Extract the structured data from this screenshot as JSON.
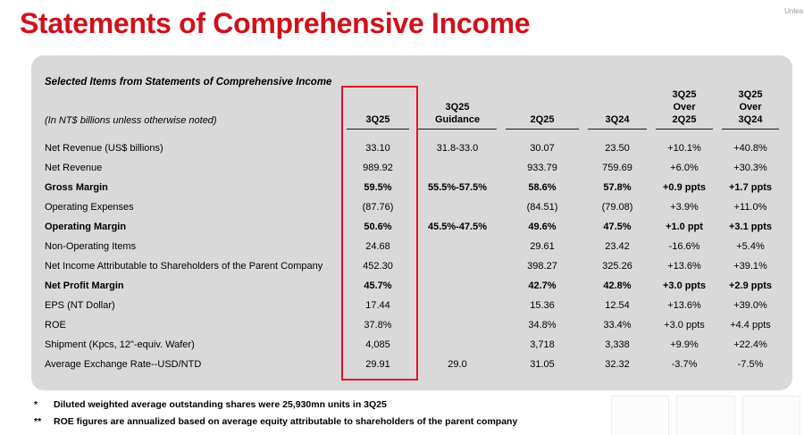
{
  "page": {
    "title": "Statements of Comprehensive Income",
    "corner_text": "Unlea"
  },
  "panel": {
    "caption": "Selected Items from Statements of Comprehensive Income",
    "unit_note": "(In NT$ billions unless otherwise noted)"
  },
  "table": {
    "columns": [
      "3Q25",
      "3Q25 Guidance",
      "2Q25",
      "3Q24",
      "3Q25 Over 2Q25",
      "3Q25 Over 3Q24"
    ],
    "columns_lines": [
      [
        "3Q25"
      ],
      [
        "3Q25",
        "Guidance"
      ],
      [
        "2Q25"
      ],
      [
        "3Q24"
      ],
      [
        "3Q25",
        "Over",
        "2Q25"
      ],
      [
        "3Q25",
        "Over",
        "3Q24"
      ]
    ],
    "highlight_column": "3Q25",
    "highlight_color": "#e8112d",
    "rows": [
      {
        "label": "Net Revenue (US$ billions)",
        "bold": false,
        "values": [
          "33.10",
          "31.8-33.0",
          "30.07",
          "23.50",
          "+10.1%",
          "+40.8%"
        ]
      },
      {
        "label": "Net Revenue",
        "bold": false,
        "values": [
          "989.92",
          "",
          "933.79",
          "759.69",
          "+6.0%",
          "+30.3%"
        ]
      },
      {
        "label": "Gross Margin",
        "bold": true,
        "values": [
          "59.5%",
          "55.5%-57.5%",
          "58.6%",
          "57.8%",
          "+0.9 ppts",
          "+1.7 ppts"
        ]
      },
      {
        "label": "Operating Expenses",
        "bold": false,
        "values": [
          "(87.76)",
          "",
          "(84.51)",
          "(79.08)",
          "+3.9%",
          "+11.0%"
        ]
      },
      {
        "label": "Operating Margin",
        "bold": true,
        "values": [
          "50.6%",
          "45.5%-47.5%",
          "49.6%",
          "47.5%",
          "+1.0 ppt",
          "+3.1 ppts"
        ]
      },
      {
        "label": "Non-Operating Items",
        "bold": false,
        "values": [
          "24.68",
          "",
          "29.61",
          "23.42",
          "-16.6%",
          "+5.4%"
        ]
      },
      {
        "label": "Net Income Attributable to Shareholders of the Parent Company",
        "bold": false,
        "values": [
          "452.30",
          "",
          "398.27",
          "325.26",
          "+13.6%",
          "+39.1%"
        ]
      },
      {
        "label": "Net Profit Margin",
        "bold": true,
        "values": [
          "45.7%",
          "",
          "42.7%",
          "42.8%",
          "+3.0 ppts",
          "+2.9 ppts"
        ]
      },
      {
        "label": "EPS (NT Dollar)",
        "bold": false,
        "values": [
          "17.44",
          "",
          "15.36",
          "12.54",
          "+13.6%",
          "+39.0%"
        ]
      },
      {
        "label": "ROE",
        "bold": false,
        "values": [
          "37.8%",
          "",
          "34.8%",
          "33.4%",
          "+3.0 ppts",
          "+4.4 ppts"
        ]
      },
      {
        "label": "Shipment (Kpcs, 12\"-equiv. Wafer)",
        "bold": false,
        "values": [
          "4,085",
          "",
          "3,718",
          "3,338",
          "+9.9%",
          "+22.4%"
        ]
      },
      {
        "label": "Average Exchange Rate--USD/NTD",
        "bold": false,
        "values": [
          "29.91",
          "29.0",
          "31.05",
          "32.32",
          "-3.7%",
          "-7.5%"
        ]
      }
    ]
  },
  "footnotes": [
    {
      "marker": "*",
      "text": "Diluted weighted average outstanding shares were 25,930mn units in 3Q25"
    },
    {
      "marker": "**",
      "text": "ROE figures are annualized based on average equity attributable to shareholders of the parent company"
    }
  ],
  "colors": {
    "title_red": "#d0111b",
    "panel_gray": "#d9d9d9"
  }
}
